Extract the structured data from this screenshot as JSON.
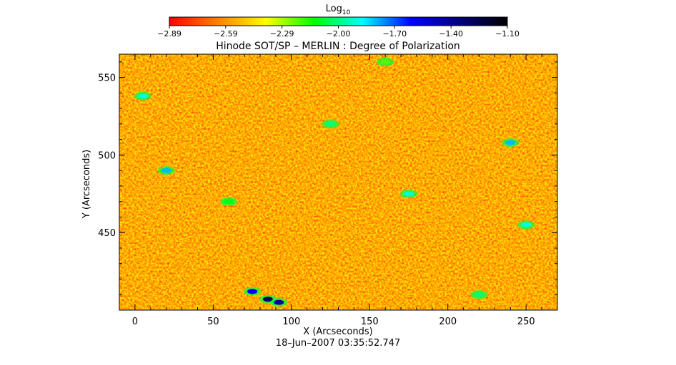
{
  "chart_data": {
    "type": "heatmap",
    "title": "Hinode SOT/SP – MERLIN : Degree of Polarization",
    "subtitle": "18–Jun–2007 03:35:52.747",
    "xlabel": "X (Arcseconds)",
    "ylabel": "Y (Arcseconds)",
    "xlim": [
      -10,
      270
    ],
    "ylim": [
      400,
      565
    ],
    "x_ticks": [
      0,
      50,
      100,
      150,
      200,
      250
    ],
    "y_ticks": [
      450,
      500,
      550
    ],
    "colorbar": {
      "label_base": "Log",
      "label_sub": "10",
      "ticks": [
        "−2.89",
        "−2.59",
        "−2.29",
        "−2.00",
        "−1.70",
        "−1.40",
        "−1.10"
      ],
      "range": [
        -2.89,
        -1.1
      ],
      "colormap": [
        "#ff0000",
        "#ff8000",
        "#ffff00",
        "#00ff00",
        "#00ffff",
        "#0000ff",
        "#000080",
        "#000000"
      ]
    },
    "values_summary": {
      "background_level": -2.85,
      "features": [
        {
          "x": 85,
          "y": 407,
          "value": -1.3
        },
        {
          "x": 75,
          "y": 412,
          "value": -1.6
        },
        {
          "x": 92,
          "y": 405,
          "value": -1.4
        },
        {
          "x": 20,
          "y": 490,
          "value": -1.8
        },
        {
          "x": 250,
          "y": 455,
          "value": -1.9
        },
        {
          "x": 125,
          "y": 520,
          "value": -2.0
        },
        {
          "x": 5,
          "y": 538,
          "value": -1.9
        },
        {
          "x": 175,
          "y": 475,
          "value": -1.9
        },
        {
          "x": 240,
          "y": 508,
          "value": -1.8
        },
        {
          "x": 220,
          "y": 410,
          "value": -2.0
        },
        {
          "x": 60,
          "y": 470,
          "value": -2.1
        },
        {
          "x": 160,
          "y": 560,
          "value": -2.2
        }
      ]
    }
  }
}
